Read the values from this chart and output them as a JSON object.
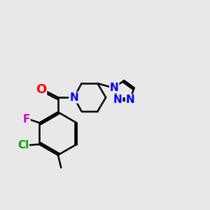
{
  "bg_color": "#e8e8e8",
  "bond_color": "#000000",
  "bond_width": 1.8,
  "atom_colors": {
    "O": "#ff0000",
    "N": "#0000ff",
    "F": "#cc00cc",
    "Cl": "#00aa00",
    "C": "#000000"
  },
  "font_size": 11,
  "font_size_large": 13
}
